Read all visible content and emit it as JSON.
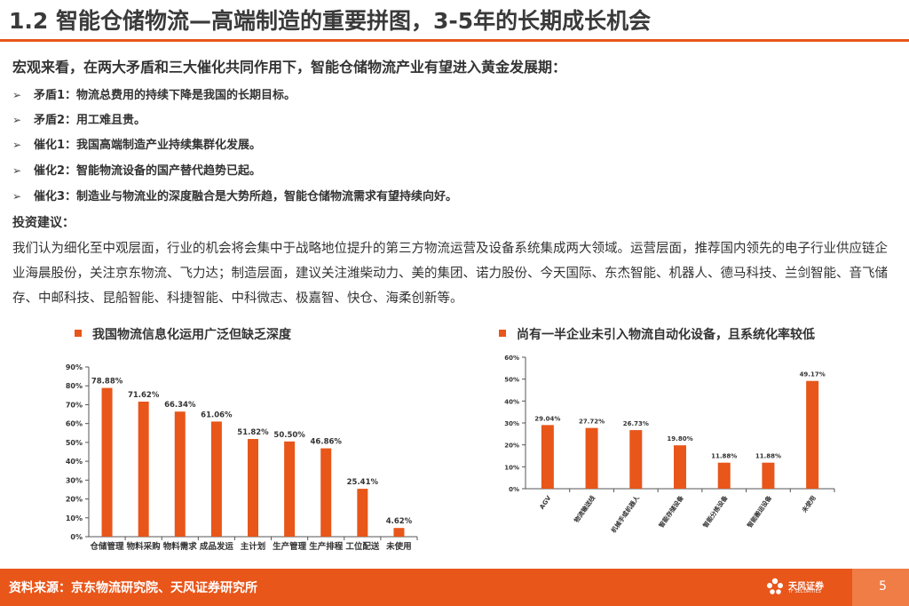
{
  "header": {
    "title": "1.2 智能仓储物流—高端制造的重要拼图，3-5年的长期成长机会"
  },
  "intro": "宏观来看，在两大矛盾和三大催化共同作用下，智能仓储物流产业有望进入黄金发展期：",
  "bullets": [
    {
      "arrow": "➢",
      "text": "矛盾1：物流总费用的持续下降是我国的长期目标。"
    },
    {
      "arrow": "➢",
      "text": "矛盾2：用工难且贵。"
    },
    {
      "arrow": "➢",
      "text": "催化1：我国高端制造产业持续集群化发展。"
    },
    {
      "arrow": "➢",
      "text": "催化2：智能物流设备的国产替代趋势已起。"
    },
    {
      "arrow": "➢",
      "text": "催化3：制造业与物流业的深度融合是大势所趋，智能仓储物流需求有望持续向好。"
    }
  ],
  "invest": {
    "title": "投资建议：",
    "text": "我们认为细化至中观层面，行业的机会将会集中于战略地位提升的第三方物流运营及设备系统集成两大领域。运营层面，推荐国内领先的电子行业供应链企业海晨股份，关注京东物流、飞力达；制造层面，建议关注潍柴动力、美的集团、诺力股份、今天国际、东杰智能、机器人、德马科技、兰剑智能、音飞储存、中邮科技、昆船智能、科捷智能、中科微志、极嘉智、快仓、海柔创新等。"
  },
  "colors": {
    "accent": "#e8561a",
    "bar": "#e8561a",
    "page_box": "#f07d46"
  },
  "chart_data": [
    {
      "type": "bar",
      "title": "我国物流信息化运用广泛但缺乏深度",
      "categories": [
        "仓储管理",
        "物料采购",
        "物料需求",
        "成品发运",
        "主计划",
        "生产管理",
        "生产排程",
        "工位配送",
        "未使用"
      ],
      "values": [
        78.88,
        71.62,
        66.34,
        61.06,
        51.82,
        50.5,
        46.86,
        25.41,
        4.62
      ],
      "value_labels": [
        "78.88%",
        "71.62%",
        "66.34%",
        "61.06%",
        "51.82%",
        "50.50%",
        "46.86%",
        "25.41%",
        "4.62%"
      ],
      "ylim": [
        0,
        90
      ],
      "yticks": [
        "0%",
        "10%",
        "20%",
        "30%",
        "40%",
        "50%",
        "60%",
        "70%",
        "80%",
        "90%"
      ],
      "xlabel": "",
      "ylabel": "",
      "grid": false,
      "legend": "none"
    },
    {
      "type": "bar",
      "title": "尚有一半企业未引入物流自动化设备，且系统化率较低",
      "categories": [
        "AGV",
        "物流输送线",
        "机械手或机器人",
        "智能存储设备",
        "智能分拣设备",
        "智能搬运设备",
        "未使用"
      ],
      "values": [
        29.04,
        27.72,
        26.73,
        19.8,
        11.88,
        11.88,
        49.17
      ],
      "value_labels": [
        "29.04%",
        "27.72%",
        "26.73%",
        "19.80%",
        "11.88%",
        "11.88%",
        "49.17%"
      ],
      "ylim": [
        0,
        60
      ],
      "yticks": [
        "0%",
        "10%",
        "20%",
        "30%",
        "40%",
        "50%",
        "60%"
      ],
      "xlabel": "",
      "ylabel": "",
      "grid": false,
      "legend": "none"
    }
  ],
  "footer": {
    "source": "资料来源：京东物流研究院、天风证券研究所",
    "logo_name": "天风证券",
    "logo_sub": "TF SECURITIES",
    "page": "5"
  }
}
